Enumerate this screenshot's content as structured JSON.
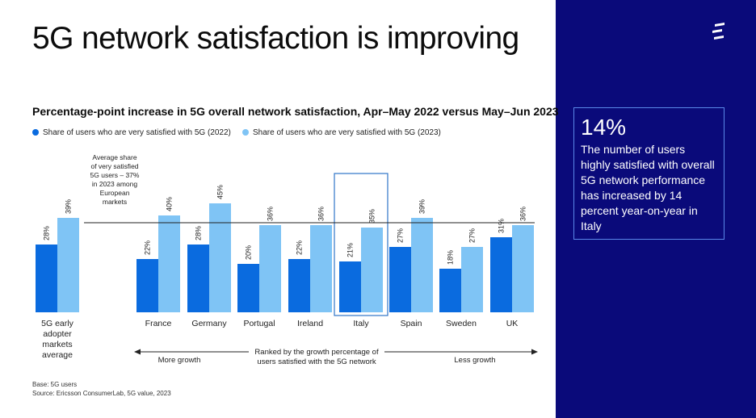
{
  "page": {
    "title": "5G network satisfaction is improving"
  },
  "colors": {
    "series_2022": "#0a6bdf",
    "series_2023": "#7fc4f5",
    "panel": "#0a0a7a",
    "highlight_border": "#2f74c8"
  },
  "callout": {
    "value": "14%",
    "text": "The number of users highly satisfied with overall 5G network performance has increased by 14 percent year-on-year in Italy"
  },
  "brand": {
    "icon": "ericsson-logo-icon"
  },
  "footnotes": {
    "base": "Base: 5G users",
    "source": "Source: Ericsson ConsumerLab, 5G value, 2023"
  },
  "chart_data": {
    "type": "bar",
    "title": "Percentage-point increase in 5G overall network satisfaction, Apr–May 2022 versus May–Jun 2023",
    "categories": [
      "5G early adopter markets average",
      "France",
      "Germany",
      "Portugal",
      "Ireland",
      "Italy",
      "Spain",
      "Sweden",
      "UK"
    ],
    "series": [
      {
        "name": "Share of users who are very satisfied with 5G (2022)",
        "values": [
          28,
          22,
          28,
          20,
          22,
          21,
          27,
          18,
          31
        ]
      },
      {
        "name": "Share of users who are very satisfied with 5G (2023)",
        "values": [
          39,
          40,
          45,
          36,
          36,
          35,
          39,
          27,
          36
        ]
      }
    ],
    "value_suffix": "%",
    "ylim": [
      0,
      50
    ],
    "reference_line": {
      "value": 37,
      "label": "Average share of very satisfied 5G users – 37% in 2023 among European markets"
    },
    "highlighted_category": "Italy",
    "axis_annotation": {
      "left": "More growth",
      "center": "Ranked by the growth percentage of users satisfied with the 5G network",
      "right": "Less growth"
    },
    "legend_position": "top-left",
    "grid": false
  }
}
